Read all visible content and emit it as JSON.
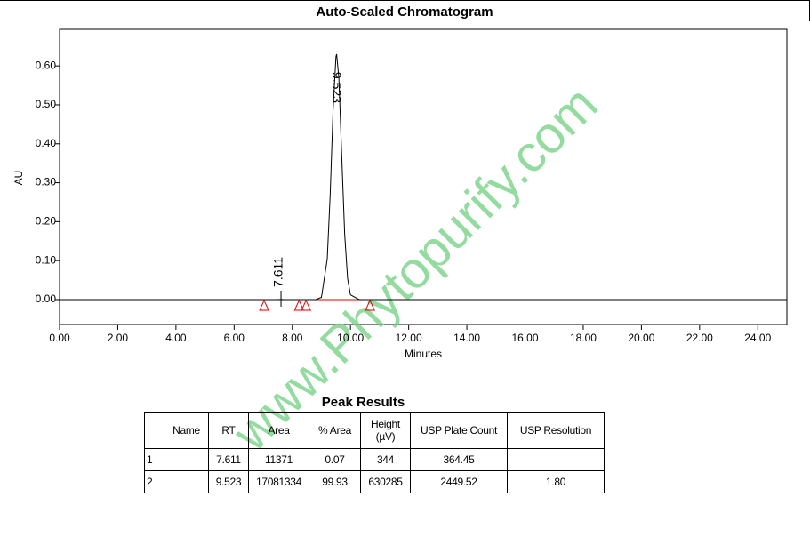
{
  "chart_data": {
    "type": "line",
    "title": "Auto-Scaled Chromatogram",
    "x_label": "Minutes",
    "y_label": "AU",
    "x": [
      0,
      7.4,
      7.611,
      7.8,
      8.8,
      9.0,
      9.2,
      9.3,
      9.4,
      9.5,
      9.523,
      9.6,
      9.7,
      9.8,
      9.9,
      10.0,
      10.3,
      25
    ],
    "values": [
      0,
      0,
      0.000344,
      0,
      0,
      0.0056,
      0.104,
      0.267,
      0.485,
      0.624,
      0.630285,
      0.569,
      0.366,
      0.167,
      0.054,
      0.012,
      0,
      0
    ],
    "color": "#000000",
    "xlim": [
      0,
      25
    ],
    "ylim": [
      -0.064,
      0.694
    ],
    "xticks": [
      {
        "value": 0,
        "label": "0.00"
      },
      {
        "value": 2,
        "label": "2.00"
      },
      {
        "value": 4,
        "label": "4.00"
      },
      {
        "value": 6,
        "label": "6.00"
      },
      {
        "value": 8,
        "label": "8.00"
      },
      {
        "value": 10,
        "label": "10.00"
      },
      {
        "value": 12,
        "label": "12.00"
      },
      {
        "value": 14,
        "label": "14.00"
      },
      {
        "value": 16,
        "label": "16.00"
      },
      {
        "value": 18,
        "label": "18.00"
      },
      {
        "value": 20,
        "label": "20.00"
      },
      {
        "value": 22,
        "label": "22.00"
      },
      {
        "value": 24,
        "label": "24.00"
      }
    ],
    "yticks": [
      {
        "value": 0,
        "label": "0.00"
      },
      {
        "value": 0.1,
        "label": "0.10"
      },
      {
        "value": 0.2,
        "label": "0.20"
      },
      {
        "value": 0.3,
        "label": "0.30"
      },
      {
        "value": 0.4,
        "label": "0.40"
      },
      {
        "value": 0.5,
        "label": "0.50"
      },
      {
        "value": 0.6,
        "label": "0.60"
      }
    ],
    "peak_labels": [
      7.611,
      9.523
    ],
    "baseline_events": {
      "x": [
        7.03,
        8.23,
        8.47,
        10.67
      ],
      "color": "#e00000"
    },
    "watermark": "www.Phytopurify.com"
  },
  "table": {
    "title": "Peak Results",
    "header": [
      null,
      "Name",
      "RT",
      "Area",
      "% Area",
      "Height (µV)",
      "USP Plate Count",
      "USP Resolution"
    ],
    "rows": [
      [
        "1",
        null,
        "7.611",
        "11371",
        "0.07",
        "344",
        "364.45",
        null
      ],
      [
        "2",
        null,
        "9.523",
        "17081334",
        "99.93",
        "630285",
        "2449.52",
        "1.80"
      ]
    ]
  }
}
